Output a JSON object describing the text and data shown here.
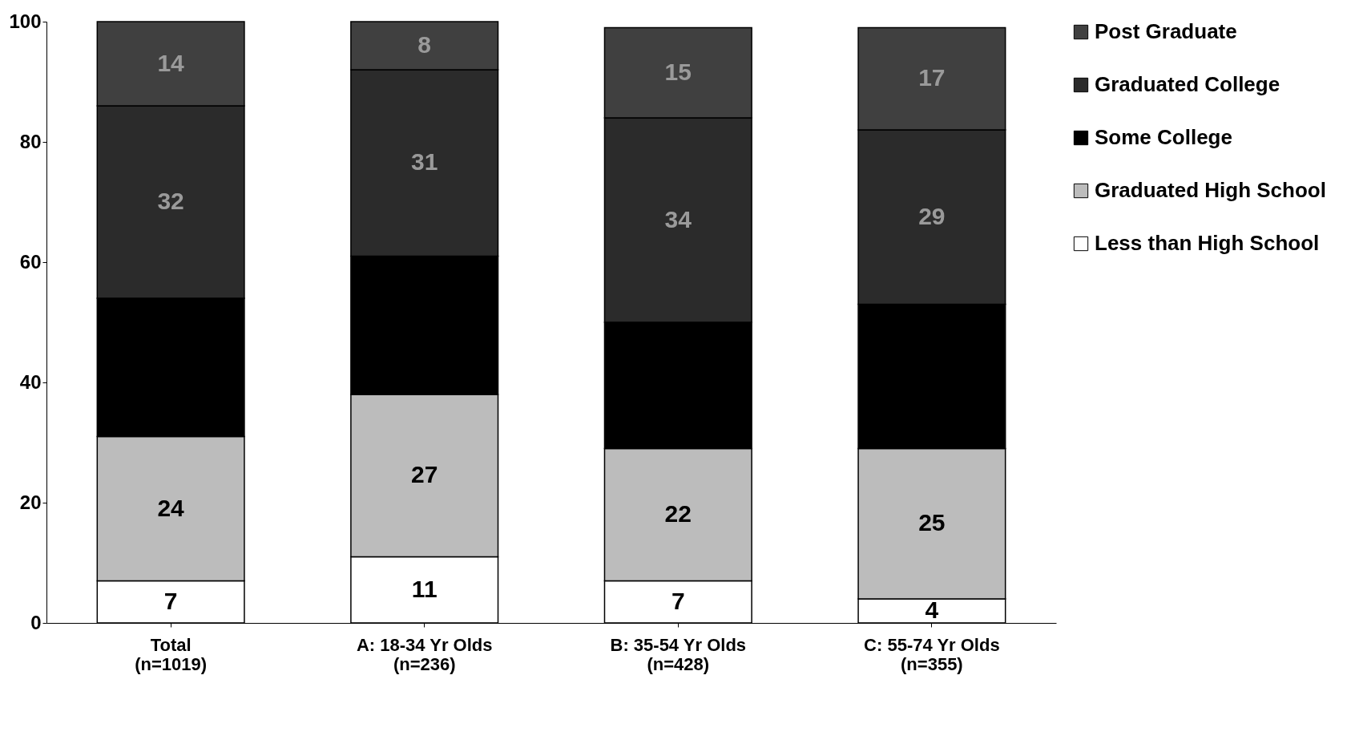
{
  "chart_data": {
    "type": "bar",
    "stacked": true,
    "categories": [
      "Total (n=1019)",
      "A: 18-34 Yr Olds (n=236)",
      "B: 35-54 Yr Olds (n=428)",
      "C: 55-74 Yr Olds (n=355)"
    ],
    "series": [
      {
        "name": "Less than High School",
        "color": "#ffffff",
        "values": [
          7,
          11,
          7,
          4
        ],
        "value_labels": [
          "7",
          "11",
          "7",
          "4"
        ]
      },
      {
        "name": "Graduated High School",
        "color": "#bcbcbc",
        "values": [
          24,
          27,
          22,
          25
        ],
        "value_labels": [
          "24",
          "27",
          "22",
          "25"
        ]
      },
      {
        "name": "Some College",
        "color": "#000000",
        "values": [
          23,
          23,
          21,
          24
        ],
        "value_labels": [
          null,
          null,
          null,
          null
        ]
      },
      {
        "name": "Graduated College",
        "color": "#2b2b2b",
        "values": [
          32,
          31,
          34,
          29
        ],
        "value_labels": [
          "32",
          "31",
          "34",
          "29"
        ]
      },
      {
        "name": "Post Graduate",
        "color": "#404040",
        "values": [
          14,
          8,
          15,
          17
        ],
        "value_labels": [
          "14",
          "8",
          "15",
          "17"
        ]
      }
    ],
    "ylim": [
      0,
      100
    ],
    "yticks": [
      0,
      20,
      40,
      60,
      80,
      100
    ],
    "grid": false,
    "legend": "right"
  }
}
